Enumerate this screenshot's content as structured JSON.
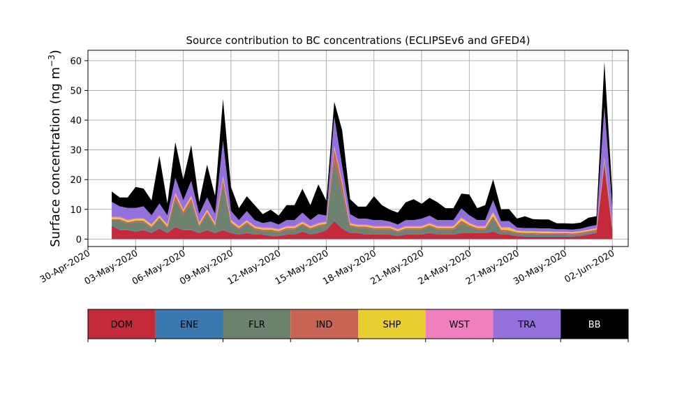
{
  "chart_data": {
    "type": "area",
    "title": "Source contribution to BC concentrations (ECLIPSEv6 and GFED4)",
    "xlabel": "",
    "ylabel": "Surface concentration (ng m",
    "ylabel_sup": "−3",
    "ylabel_close": ")",
    "xlim": [
      "2020-04-30T00:00",
      "2020-06-03T00:00"
    ],
    "ylim": [
      -2.5,
      63.5
    ],
    "yticks": [
      0,
      10,
      20,
      30,
      40,
      50,
      60
    ],
    "xticks": [
      {
        "date": "2020-04-30",
        "label": "30-Apr-2020"
      },
      {
        "date": "2020-05-03",
        "label": "03-May-2020"
      },
      {
        "date": "2020-05-06",
        "label": "06-May-2020"
      },
      {
        "date": "2020-05-09",
        "label": "09-May-2020"
      },
      {
        "date": "2020-05-12",
        "label": "12-May-2020"
      },
      {
        "date": "2020-05-15",
        "label": "15-May-2020"
      },
      {
        "date": "2020-05-18",
        "label": "18-May-2020"
      },
      {
        "date": "2020-05-21",
        "label": "21-May-2020"
      },
      {
        "date": "2020-05-24",
        "label": "24-May-2020"
      },
      {
        "date": "2020-05-27",
        "label": "27-May-2020"
      },
      {
        "date": "2020-05-30",
        "label": "30-May-2020"
      },
      {
        "date": "2020-06-02",
        "label": "02-Jun-2020"
      }
    ],
    "grid": true,
    "stacked": true,
    "x": [
      "2020-05-01T12:00",
      "2020-05-02T00:00",
      "2020-05-02T12:00",
      "2020-05-03T00:00",
      "2020-05-03T12:00",
      "2020-05-04T00:00",
      "2020-05-04T12:00",
      "2020-05-05T00:00",
      "2020-05-05T12:00",
      "2020-05-06T00:00",
      "2020-05-06T12:00",
      "2020-05-07T00:00",
      "2020-05-07T12:00",
      "2020-05-08T00:00",
      "2020-05-08T12:00",
      "2020-05-09T00:00",
      "2020-05-09T12:00",
      "2020-05-10T00:00",
      "2020-05-10T12:00",
      "2020-05-11T00:00",
      "2020-05-11T12:00",
      "2020-05-12T00:00",
      "2020-05-12T12:00",
      "2020-05-13T00:00",
      "2020-05-13T12:00",
      "2020-05-14T00:00",
      "2020-05-14T12:00",
      "2020-05-15T00:00",
      "2020-05-15T12:00",
      "2020-05-16T00:00",
      "2020-05-16T12:00",
      "2020-05-17T00:00",
      "2020-05-17T12:00",
      "2020-05-18T00:00",
      "2020-05-18T12:00",
      "2020-05-19T00:00",
      "2020-05-19T12:00",
      "2020-05-20T00:00",
      "2020-05-20T12:00",
      "2020-05-21T00:00",
      "2020-05-21T12:00",
      "2020-05-22T00:00",
      "2020-05-22T12:00",
      "2020-05-23T00:00",
      "2020-05-23T12:00",
      "2020-05-24T00:00",
      "2020-05-24T12:00",
      "2020-05-25T00:00",
      "2020-05-25T12:00",
      "2020-05-26T00:00",
      "2020-05-26T12:00",
      "2020-05-27T00:00",
      "2020-05-27T12:00",
      "2020-05-28T00:00",
      "2020-05-28T12:00",
      "2020-05-29T00:00",
      "2020-05-29T12:00",
      "2020-05-30T00:00",
      "2020-05-30T12:00",
      "2020-05-31T00:00",
      "2020-05-31T12:00",
      "2020-06-01T00:00",
      "2020-06-01T12:00",
      "2020-06-02T00:00"
    ],
    "series": [
      {
        "name": "DOM",
        "color": "#c52a3a",
        "values": [
          4.5,
          3,
          3,
          2.5,
          3,
          2,
          3.5,
          2,
          4,
          3,
          3,
          2,
          3,
          2,
          3,
          2,
          1.5,
          2,
          1.5,
          1.5,
          1,
          1,
          1.5,
          1.5,
          2.5,
          1.5,
          2,
          3,
          6,
          3.5,
          2,
          2,
          1.5,
          1.5,
          1.5,
          1.5,
          1,
          1.5,
          1.5,
          1.5,
          2,
          1.5,
          1.5,
          1.5,
          2,
          2,
          2,
          2,
          2.5,
          1.5,
          1.5,
          1,
          0.8,
          0.8,
          0.8,
          0.8,
          0.8,
          0.8,
          0.8,
          1,
          1.5,
          2,
          25,
          3
        ]
      },
      {
        "name": "ENE",
        "color": "#3b78b0",
        "values": [
          0.2,
          0.2,
          0.2,
          0.2,
          0.2,
          0.2,
          0.2,
          0.2,
          0.2,
          0.2,
          0.2,
          0.2,
          0.2,
          0.2,
          0.2,
          0.2,
          0.2,
          0.2,
          0.2,
          0.2,
          0.2,
          0.2,
          0.2,
          0.2,
          0.2,
          0.2,
          0.2,
          0.2,
          0.3,
          0.2,
          0.2,
          0.2,
          0.2,
          0.2,
          0.2,
          0.2,
          0.2,
          0.2,
          0.2,
          0.2,
          0.2,
          0.2,
          0.2,
          0.2,
          0.2,
          0.2,
          0.2,
          0.2,
          0.2,
          0.2,
          0.2,
          0.2,
          0.2,
          0.2,
          0.2,
          0.2,
          0.2,
          0.2,
          0.2,
          0.2,
          0.2,
          0.2,
          0.5,
          0.2
        ]
      },
      {
        "name": "FLR",
        "color": "#6e8270",
        "values": [
          1.5,
          3,
          2,
          3,
          2.5,
          1.5,
          3,
          1.5,
          9,
          5,
          9,
          2,
          5,
          2,
          15,
          3,
          1.5,
          3,
          1.5,
          1,
          1.5,
          1,
          1.5,
          1.5,
          2,
          1.5,
          2,
          1.5,
          20,
          12,
          2,
          1.5,
          2,
          1.5,
          1.5,
          1.5,
          1,
          1.5,
          1.5,
          1.5,
          2,
          1.5,
          1.5,
          1.5,
          3,
          2,
          1,
          1,
          4,
          1,
          0.8,
          0.6,
          0.6,
          0.6,
          0.5,
          0.5,
          0.5,
          0.5,
          0.4,
          0.5,
          0.5,
          0.5,
          0.5,
          0.5
        ]
      },
      {
        "name": "IND",
        "color": "#c76454",
        "values": [
          0.5,
          0.5,
          0.5,
          0.5,
          0.5,
          0.5,
          0.5,
          0.5,
          1.5,
          1,
          1.5,
          0.5,
          1,
          0.5,
          2,
          0.5,
          0.5,
          0.5,
          0.5,
          0.5,
          0.5,
          0.5,
          0.5,
          0.5,
          0.5,
          0.5,
          0.5,
          0.5,
          4,
          3,
          0.5,
          0.5,
          0.5,
          0.5,
          0.5,
          0.5,
          0.5,
          0.5,
          0.5,
          0.5,
          0.5,
          0.5,
          0.5,
          0.5,
          1,
          0.5,
          0.5,
          0.5,
          1,
          0.5,
          0.5,
          0.5,
          0.5,
          0.5,
          0.5,
          0.5,
          0.5,
          0.5,
          0.5,
          0.5,
          0.5,
          0.5,
          1,
          0.5
        ]
      },
      {
        "name": "SHP",
        "color": "#e8cf30",
        "values": [
          0.5,
          0.5,
          0.5,
          0.5,
          0.5,
          0.5,
          0.5,
          0.5,
          0.5,
          0.5,
          0.5,
          0.5,
          0.5,
          0.5,
          0.5,
          0.5,
          0.4,
          0.4,
          0.4,
          0.4,
          0.4,
          0.4,
          0.4,
          0.4,
          0.4,
          0.4,
          0.4,
          0.4,
          0.5,
          0.5,
          0.4,
          0.4,
          0.4,
          0.4,
          0.4,
          0.4,
          0.4,
          0.4,
          0.4,
          0.4,
          0.4,
          0.4,
          0.4,
          0.4,
          0.8,
          0.5,
          0.4,
          0.4,
          1,
          0.5,
          0.8,
          0.4,
          0.4,
          0.4,
          0.4,
          0.4,
          0.3,
          0.3,
          0.3,
          0.3,
          0.3,
          0.3,
          0.3,
          0.3
        ]
      },
      {
        "name": "WST",
        "color": "#f07fbf",
        "values": [
          0.3,
          0.3,
          0.3,
          0.3,
          0.3,
          0.3,
          0.3,
          0.3,
          0.4,
          0.4,
          0.4,
          0.3,
          0.3,
          0.3,
          0.4,
          0.3,
          0.3,
          0.3,
          0.3,
          0.3,
          0.3,
          0.3,
          0.3,
          0.3,
          0.3,
          0.3,
          0.3,
          0.3,
          0.4,
          0.4,
          0.3,
          0.3,
          0.3,
          0.3,
          0.3,
          0.3,
          0.3,
          0.3,
          0.3,
          0.3,
          0.3,
          0.3,
          0.3,
          0.3,
          0.3,
          0.3,
          0.3,
          0.3,
          0.4,
          0.3,
          0.3,
          0.2,
          0.2,
          0.2,
          0.2,
          0.2,
          0.2,
          0.2,
          0.2,
          0.2,
          0.2,
          0.2,
          0.3,
          0.2
        ]
      },
      {
        "name": "TRA",
        "color": "#9370db",
        "values": [
          5,
          3.5,
          4,
          3.5,
          4,
          3,
          4,
          3,
          5,
          3,
          5,
          3,
          4,
          3,
          12,
          3,
          2,
          3,
          2,
          1.5,
          2,
          1.5,
          2,
          2,
          3,
          2,
          3,
          2,
          10,
          5,
          3,
          2,
          2,
          2,
          2,
          1.5,
          1.5,
          2,
          2,
          2.5,
          2.5,
          2,
          2,
          2,
          3,
          2.5,
          2,
          2,
          4,
          2,
          2,
          1,
          1,
          1,
          1,
          1,
          0.8,
          0.8,
          0.8,
          0.8,
          1,
          1,
          17,
          6
        ]
      },
      {
        "name": "BB",
        "color": "#000000",
        "values": [
          3.5,
          3,
          3.5,
          7,
          6,
          5,
          16,
          4,
          12,
          7,
          12,
          4,
          11,
          6,
          14,
          8,
          4,
          5,
          5,
          3,
          4,
          3,
          5,
          5,
          8,
          5,
          10,
          5,
          5,
          12,
          5,
          4,
          4,
          8,
          5,
          4,
          4,
          6,
          7,
          5,
          6,
          6,
          4,
          4,
          5,
          7,
          4,
          5,
          7,
          4,
          4,
          3,
          4,
          3,
          3,
          3,
          2,
          2,
          2,
          2,
          3,
          3,
          15,
          5
        ]
      }
    ],
    "legend_placement": "bottom"
  }
}
